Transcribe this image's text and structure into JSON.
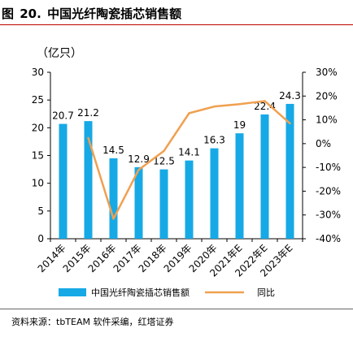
{
  "figure": {
    "label": "图",
    "number": "20.",
    "title": "中国光纤陶瓷插芯销售额"
  },
  "source_note": "资料来源：tbTEAM 软件采编，红塔证券",
  "chart_data": {
    "type": "bar",
    "title": "",
    "unit_label": "（亿只）",
    "categories": [
      "2014年",
      "2015年",
      "2016年",
      "2017年",
      "2018年",
      "2019年",
      "2020年",
      "2021年E",
      "2022年E",
      "2023年E"
    ],
    "series": [
      {
        "name": "中国光纤陶瓷插芯销售额",
        "type": "bar",
        "axis": "left",
        "color": "#16a9e6",
        "values": [
          20.7,
          21.2,
          14.5,
          12.9,
          12.5,
          14.1,
          16.3,
          19,
          22.4,
          24.3
        ],
        "value_labels": [
          "20.7",
          "21.2",
          "14.5",
          "12.9",
          "12.5",
          "14.1",
          "16.3",
          "19",
          "22.4",
          "24.3"
        ]
      },
      {
        "name": "同比",
        "type": "line",
        "axis": "right",
        "color": "#f0a050",
        "values": [
          null,
          2.4,
          -31.6,
          -11.0,
          -3.1,
          12.8,
          15.6,
          16.6,
          17.9,
          8.5
        ]
      }
    ],
    "y_left": {
      "min": 0,
      "max": 30,
      "ticks": [
        "0",
        "5",
        "10",
        "15",
        "20",
        "25",
        "30"
      ]
    },
    "y_right": {
      "min": -40,
      "max": 30,
      "ticks": [
        "-40%",
        "-30%",
        "-20%",
        "-10%",
        "0%",
        "10%",
        "20%",
        "30%"
      ]
    },
    "grid": false,
    "legend_position": "bottom"
  }
}
